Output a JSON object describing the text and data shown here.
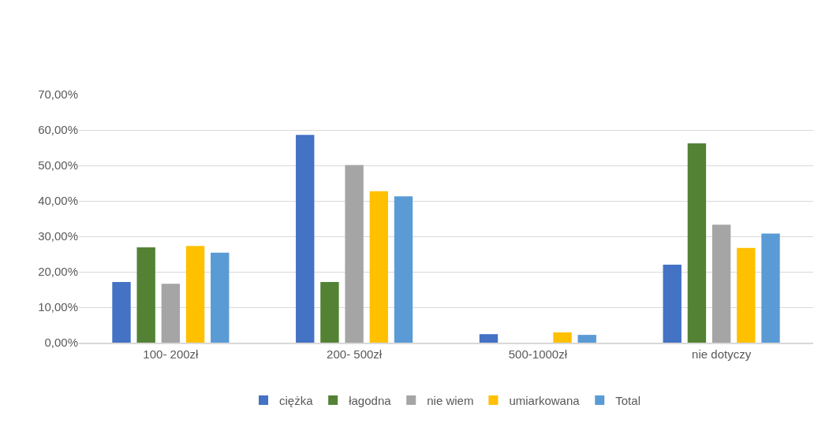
{
  "chart_data": {
    "type": "bar",
    "categories": [
      "100- 200zł",
      "200- 500zł",
      "500-1000zł",
      "nie dotyczy"
    ],
    "series": [
      {
        "name": "ciężka",
        "color": "#4472c4",
        "values": [
          17.1,
          58.6,
          2.4,
          22.0
        ]
      },
      {
        "name": "łagodna",
        "color": "#548235",
        "values": [
          26.9,
          17.1,
          0,
          56.2
        ]
      },
      {
        "name": "nie wiem",
        "color": "#a5a5a5",
        "values": [
          16.6,
          50.1,
          0,
          33.3
        ]
      },
      {
        "name": "umiarkowana",
        "color": "#ffc000",
        "values": [
          27.3,
          42.7,
          2.9,
          26.7
        ]
      },
      {
        "name": "Total",
        "color": "#5b9bd5",
        "values": [
          25.4,
          41.3,
          2.2,
          30.8
        ]
      }
    ],
    "ylim": [
      0,
      70
    ],
    "yticks": [
      {
        "value": 0,
        "label": "0,00%"
      },
      {
        "value": 10,
        "label": "10,00%"
      },
      {
        "value": 20,
        "label": "20,00%"
      },
      {
        "value": 30,
        "label": "30,00%"
      },
      {
        "value": 40,
        "label": "40,00%"
      },
      {
        "value": 50,
        "label": "50,00%"
      },
      {
        "value": 60,
        "label": "60,00%"
      },
      {
        "value": 70,
        "label": "70,00%"
      }
    ],
    "grid": "y",
    "legend": "bottom"
  }
}
